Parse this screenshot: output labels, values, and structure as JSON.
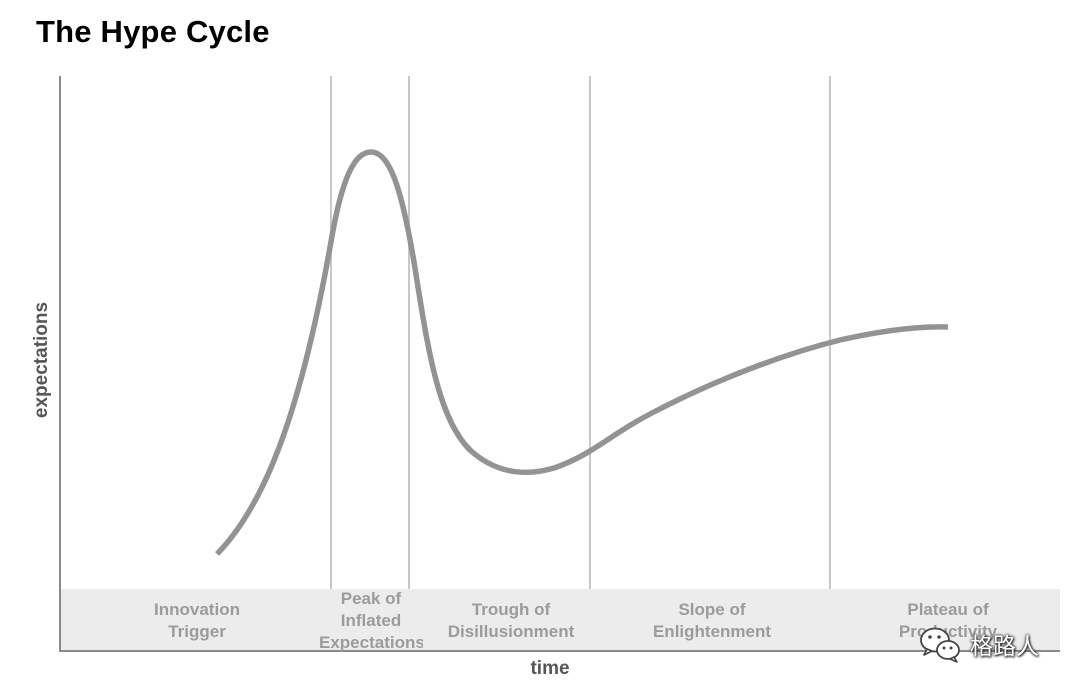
{
  "title": "The Hype Cycle",
  "axes": {
    "y_label": "expectations",
    "x_label": "time"
  },
  "colors": {
    "curve": "#939393",
    "axis": "#8a8a8a",
    "divider": "#c8c8c8",
    "band": "#ececec",
    "phase_text": "#9b9b9b"
  },
  "phases": [
    {
      "line1": "Innovation",
      "line2": "Trigger"
    },
    {
      "line1": "Peak of",
      "line2": "Inflated",
      "line3": "Expectations"
    },
    {
      "line1": "Trough of",
      "line2": "Disillusionment"
    },
    {
      "line1": "Slope of",
      "line2": "Enlightenment"
    },
    {
      "line1": "Plateau of",
      "line2": "Productivity"
    }
  ],
  "watermark": {
    "text": "格路人",
    "icon": "wechat-icon"
  }
}
